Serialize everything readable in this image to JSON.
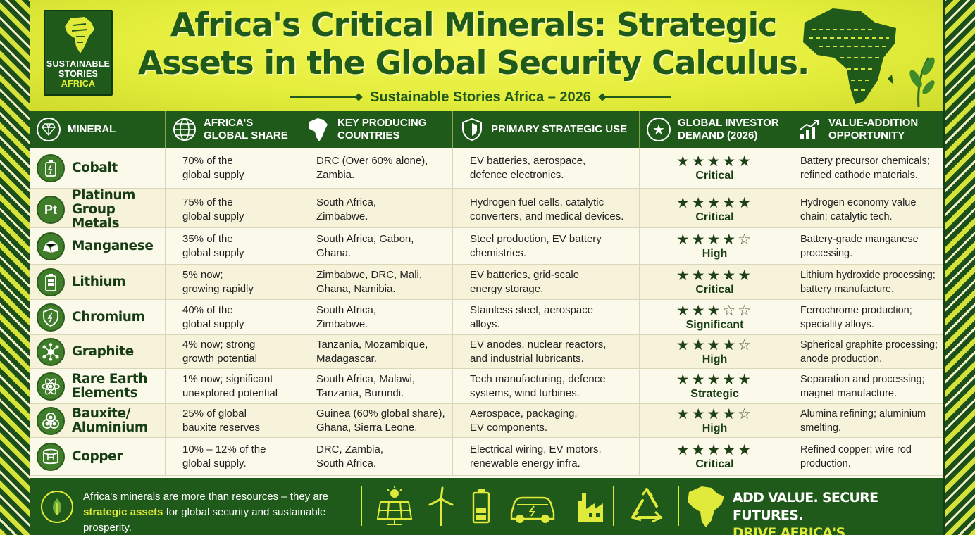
{
  "logo": {
    "line1": "SUSTAINABLE",
    "line2": "STORIES",
    "line3": "AFRICA"
  },
  "header": {
    "title_line1": "Africa's Critical Minerals: Strategic",
    "title_line2": "Assets in the Global Security Calculus.",
    "subtitle": "Sustainable Stories Africa – 2026"
  },
  "table": {
    "columns": [
      {
        "label": "MINERAL",
        "icon": "diamond-icon"
      },
      {
        "label": "AFRICA'S\nGLOBAL SHARE",
        "icon": "globe-icon"
      },
      {
        "label": "KEY PRODUCING\nCOUNTRIES",
        "icon": "africa-map-icon"
      },
      {
        "label": "PRIMARY STRATEGIC USE",
        "icon": "shield-icon"
      },
      {
        "label": "GLOBAL INVESTOR\nDEMAND (2026)",
        "icon": "star-badge-icon"
      },
      {
        "label": "VALUE-ADDITION\nOPPORTUNITY",
        "icon": "growth-chart-icon"
      }
    ],
    "rows": [
      {
        "mineral": "Cobalt",
        "icon": "battery-icon",
        "share": "70% of the\nglobal supply",
        "countries": "DRC (Over 60% alone),\nZambia.",
        "use": "EV batteries, aerospace,\ndefence electronics.",
        "stars": 5,
        "demand": "Critical",
        "value": "Battery precursor chemicals;\nrefined cathode materials."
      },
      {
        "mineral": "Platinum Group\nMetals",
        "icon": "pt-icon",
        "icon_text": "Pt",
        "share": "75% of the\nglobal supply",
        "countries": "South Africa,\nZimbabwe.",
        "use": "Hydrogen fuel cells, catalytic\nconverters, and medical devices.",
        "stars": 5,
        "demand": "Critical",
        "value": "Hydrogen economy value\nchain; catalytic tech."
      },
      {
        "mineral": "Manganese",
        "icon": "rock-icon",
        "share": "35% of the\nglobal supply",
        "countries": "South Africa, Gabon,\nGhana.",
        "use": "Steel production, EV battery\nchemistries.",
        "stars": 4,
        "demand": "High",
        "value": "Battery-grade manganese\nprocessing."
      },
      {
        "mineral": "Lithium",
        "icon": "battery-cell-icon",
        "share": "5% now;\ngrowing rapidly",
        "countries": "Zimbabwe, DRC, Mali,\nGhana, Namibia.",
        "use": "EV batteries, grid-scale\nenergy storage.",
        "stars": 5,
        "demand": "Critical",
        "value": "Lithium hydroxide processing;\nbattery manufacture."
      },
      {
        "mineral": "Chromium",
        "icon": "shield-bolt-icon",
        "share": "40% of the\nglobal supply",
        "countries": "South Africa,\nZimbabwe.",
        "use": "Stainless steel, aerospace\nalloys.",
        "stars": 3,
        "demand": "Significant",
        "value": "Ferrochrome production;\nspeciality alloys."
      },
      {
        "mineral": "Graphite",
        "icon": "molecule-icon",
        "share": "4% now; strong\ngrowth potential",
        "countries": "Tanzania, Mozambique,\nMadagascar.",
        "use": "EV anodes, nuclear reactors,\nand industrial lubricants.",
        "stars": 4,
        "demand": "High",
        "value": "Spherical graphite processing;\nanode production."
      },
      {
        "mineral": "Rare Earth\nElements",
        "icon": "atom-icon",
        "share": "1% now; significant\nunexplored potential",
        "countries": "South Africa, Malawi,\nTanzania, Burundi.",
        "use": "Tech manufacturing, defence\nsystems, wind turbines.",
        "stars": 5,
        "demand": "Strategic",
        "value": "Separation and processing;\nmagnet manufacture."
      },
      {
        "mineral": "Bauxite/\nAluminium",
        "icon": "ore-icon",
        "share": "25% of global\nbauxite reserves",
        "countries": "Guinea (60% global share),\nGhana, Sierra Leone.",
        "use": "Aerospace, packaging,\nEV components.",
        "stars": 4,
        "demand": "High",
        "value": "Alumina refining; aluminium\nsmelting."
      },
      {
        "mineral": "Copper",
        "icon": "copper-coil-icon",
        "share": "10% – 12% of the\nglobal supply.",
        "countries": "DRC, Zambia,\nSouth Africa.",
        "use": "Electrical wiring, EV motors,\nrenewable energy infra.",
        "stars": 5,
        "demand": "Critical",
        "value": "Refined copper; wire rod\nproduction."
      }
    ]
  },
  "footer": {
    "text_before": "Africa's minerals are more than resources – they are",
    "text_highlight": "strategic assets",
    "text_after": " for global security and sustainable prosperity.",
    "icons": [
      "solar-panel-icon",
      "wind-turbine-icon",
      "battery-icon",
      "electric-car-icon",
      "factory-icon",
      "recycle-icon",
      "africa-map-icon"
    ],
    "tagline_line1": "ADD VALUE. SECURE FUTURES.",
    "tagline_line2": "DRIVE AFRICA'S TRANSFORMATION."
  },
  "colors": {
    "dark_green": "#1f5a1b",
    "lime": "#e0ea3b",
    "header_yellow": "#e5ee3d",
    "cream": "#fbf9ea"
  }
}
